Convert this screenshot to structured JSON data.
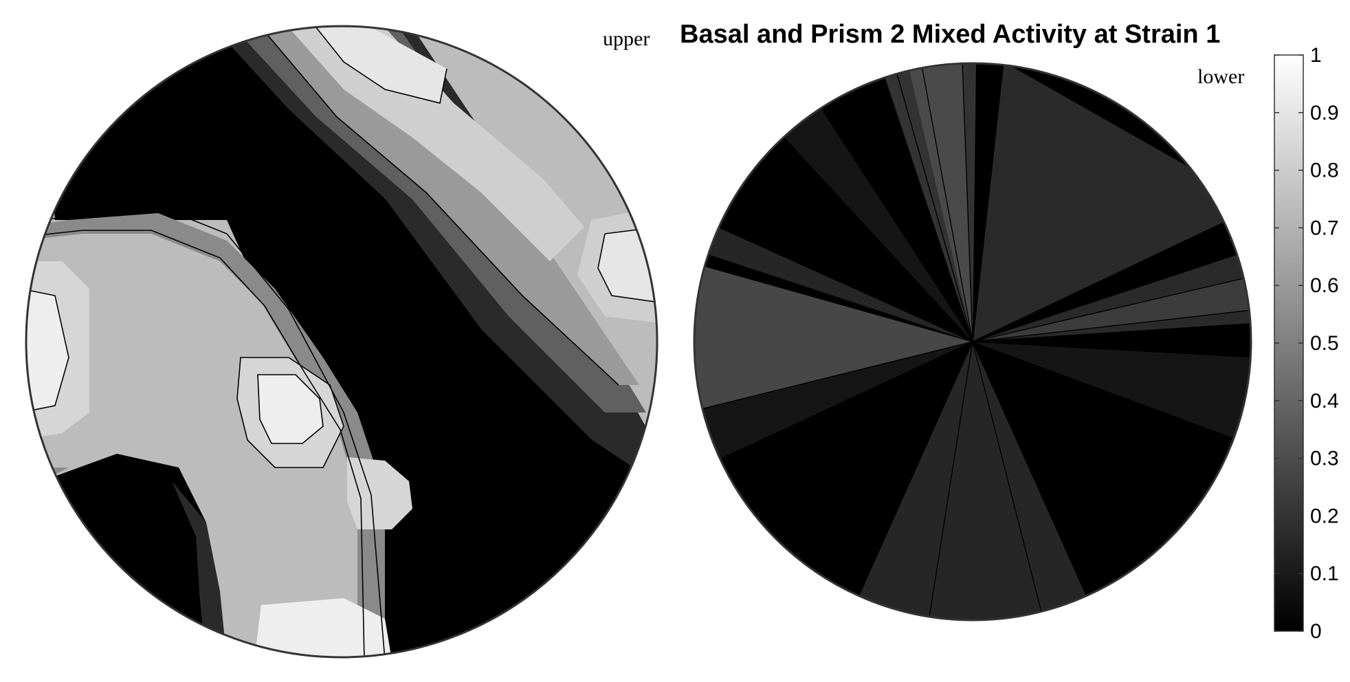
{
  "chart_data": {
    "type": "contour",
    "title": "Basal and Prism 2 Mixed Activity at Strain 1",
    "panels": [
      {
        "label": "upper",
        "levels": [
          0,
          0.1,
          0.2,
          0.3,
          0.4,
          0.5,
          0.6,
          0.7,
          0.8,
          0.9
        ]
      },
      {
        "label": "lower",
        "levels": [
          0,
          0.1,
          0.2,
          0.3,
          0.4
        ]
      }
    ],
    "colorbar": {
      "range": [
        0,
        1
      ],
      "ticks": [
        "0",
        "0.1",
        "0.2",
        "0.3",
        "0.4",
        "0.5",
        "0.6",
        "0.7",
        "0.8",
        "0.9",
        "1"
      ],
      "colormap": "gray"
    }
  }
}
